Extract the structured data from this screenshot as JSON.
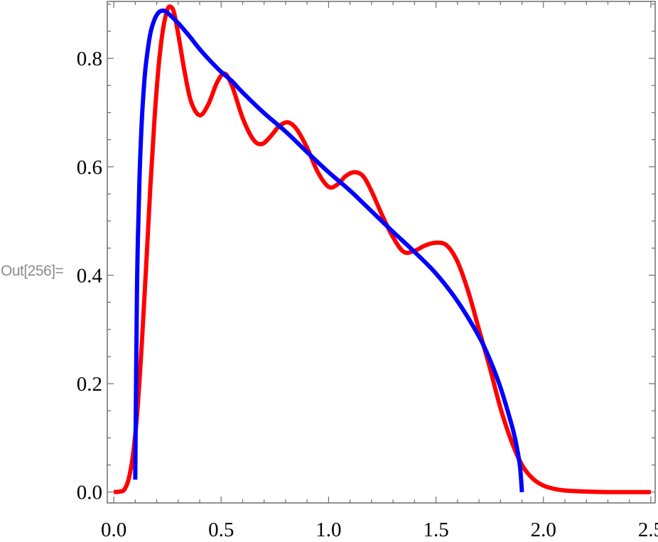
{
  "output_label": "Out[256]=",
  "chart_data": {
    "type": "line",
    "title": "",
    "xlabel": "",
    "ylabel": "",
    "xlim": [
      -0.03,
      2.52
    ],
    "ylim": [
      -0.02,
      0.905
    ],
    "grid": false,
    "x_ticks": [
      {
        "value": 0.0,
        "label": "0.0"
      },
      {
        "value": 0.5,
        "label": "0.5"
      },
      {
        "value": 1.0,
        "label": "1.0"
      },
      {
        "value": 1.5,
        "label": "1.5"
      },
      {
        "value": 2.0,
        "label": "2.0"
      },
      {
        "value": 2.5,
        "label": "2.5"
      }
    ],
    "y_ticks": [
      {
        "value": 0.0,
        "label": "0.0"
      },
      {
        "value": 0.2,
        "label": "0.2"
      },
      {
        "value": 0.4,
        "label": "0.4"
      },
      {
        "value": 0.6,
        "label": "0.6"
      },
      {
        "value": 0.8,
        "label": "0.8"
      }
    ],
    "series": [
      {
        "color": "#ff0000",
        "points": [
          [
            0.0,
            0.0
          ],
          [
            0.03,
            0.001
          ],
          [
            0.05,
            0.005
          ],
          [
            0.07,
            0.025
          ],
          [
            0.09,
            0.07
          ],
          [
            0.11,
            0.15
          ],
          [
            0.13,
            0.27
          ],
          [
            0.15,
            0.41
          ],
          [
            0.17,
            0.56
          ],
          [
            0.19,
            0.69
          ],
          [
            0.21,
            0.79
          ],
          [
            0.23,
            0.855
          ],
          [
            0.25,
            0.89
          ],
          [
            0.265,
            0.895
          ],
          [
            0.28,
            0.885
          ],
          [
            0.3,
            0.845
          ],
          [
            0.33,
            0.775
          ],
          [
            0.36,
            0.72
          ],
          [
            0.4,
            0.695
          ],
          [
            0.44,
            0.715
          ],
          [
            0.48,
            0.755
          ],
          [
            0.515,
            0.772
          ],
          [
            0.55,
            0.75
          ],
          [
            0.6,
            0.69
          ],
          [
            0.65,
            0.65
          ],
          [
            0.69,
            0.642
          ],
          [
            0.73,
            0.656
          ],
          [
            0.77,
            0.675
          ],
          [
            0.81,
            0.682
          ],
          [
            0.85,
            0.67
          ],
          [
            0.9,
            0.635
          ],
          [
            0.95,
            0.59
          ],
          [
            1.0,
            0.563
          ],
          [
            1.04,
            0.567
          ],
          [
            1.08,
            0.583
          ],
          [
            1.12,
            0.59
          ],
          [
            1.16,
            0.583
          ],
          [
            1.2,
            0.555
          ],
          [
            1.25,
            0.51
          ],
          [
            1.3,
            0.47
          ],
          [
            1.35,
            0.443
          ],
          [
            1.4,
            0.445
          ],
          [
            1.45,
            0.455
          ],
          [
            1.5,
            0.46
          ],
          [
            1.55,
            0.455
          ],
          [
            1.6,
            0.425
          ],
          [
            1.65,
            0.37
          ],
          [
            1.7,
            0.3
          ],
          [
            1.75,
            0.23
          ],
          [
            1.8,
            0.155
          ],
          [
            1.85,
            0.095
          ],
          [
            1.9,
            0.05
          ],
          [
            1.95,
            0.025
          ],
          [
            2.0,
            0.012
          ],
          [
            2.05,
            0.006
          ],
          [
            2.1,
            0.003
          ],
          [
            2.2,
            0.001
          ],
          [
            2.3,
            0.0
          ],
          [
            2.5,
            0.0
          ]
        ]
      },
      {
        "color": "#0000ff",
        "points": [
          [
            0.1,
            0.023
          ],
          [
            0.105,
            0.25
          ],
          [
            0.11,
            0.42
          ],
          [
            0.12,
            0.58
          ],
          [
            0.13,
            0.68
          ],
          [
            0.14,
            0.745
          ],
          [
            0.15,
            0.79
          ],
          [
            0.17,
            0.845
          ],
          [
            0.19,
            0.872
          ],
          [
            0.21,
            0.885
          ],
          [
            0.23,
            0.888
          ],
          [
            0.25,
            0.884
          ],
          [
            0.3,
            0.865
          ],
          [
            0.35,
            0.842
          ],
          [
            0.4,
            0.817
          ],
          [
            0.45,
            0.795
          ],
          [
            0.5,
            0.775
          ],
          [
            0.55,
            0.758
          ],
          [
            0.6,
            0.737
          ],
          [
            0.7,
            0.699
          ],
          [
            0.8,
            0.665
          ],
          [
            0.9,
            0.627
          ],
          [
            1.0,
            0.59
          ],
          [
            1.1,
            0.556
          ],
          [
            1.2,
            0.518
          ],
          [
            1.3,
            0.48
          ],
          [
            1.4,
            0.443
          ],
          [
            1.5,
            0.403
          ],
          [
            1.6,
            0.352
          ],
          [
            1.7,
            0.287
          ],
          [
            1.75,
            0.245
          ],
          [
            1.8,
            0.193
          ],
          [
            1.85,
            0.127
          ],
          [
            1.87,
            0.095
          ],
          [
            1.89,
            0.05
          ],
          [
            1.9,
            0.0
          ]
        ]
      }
    ]
  }
}
